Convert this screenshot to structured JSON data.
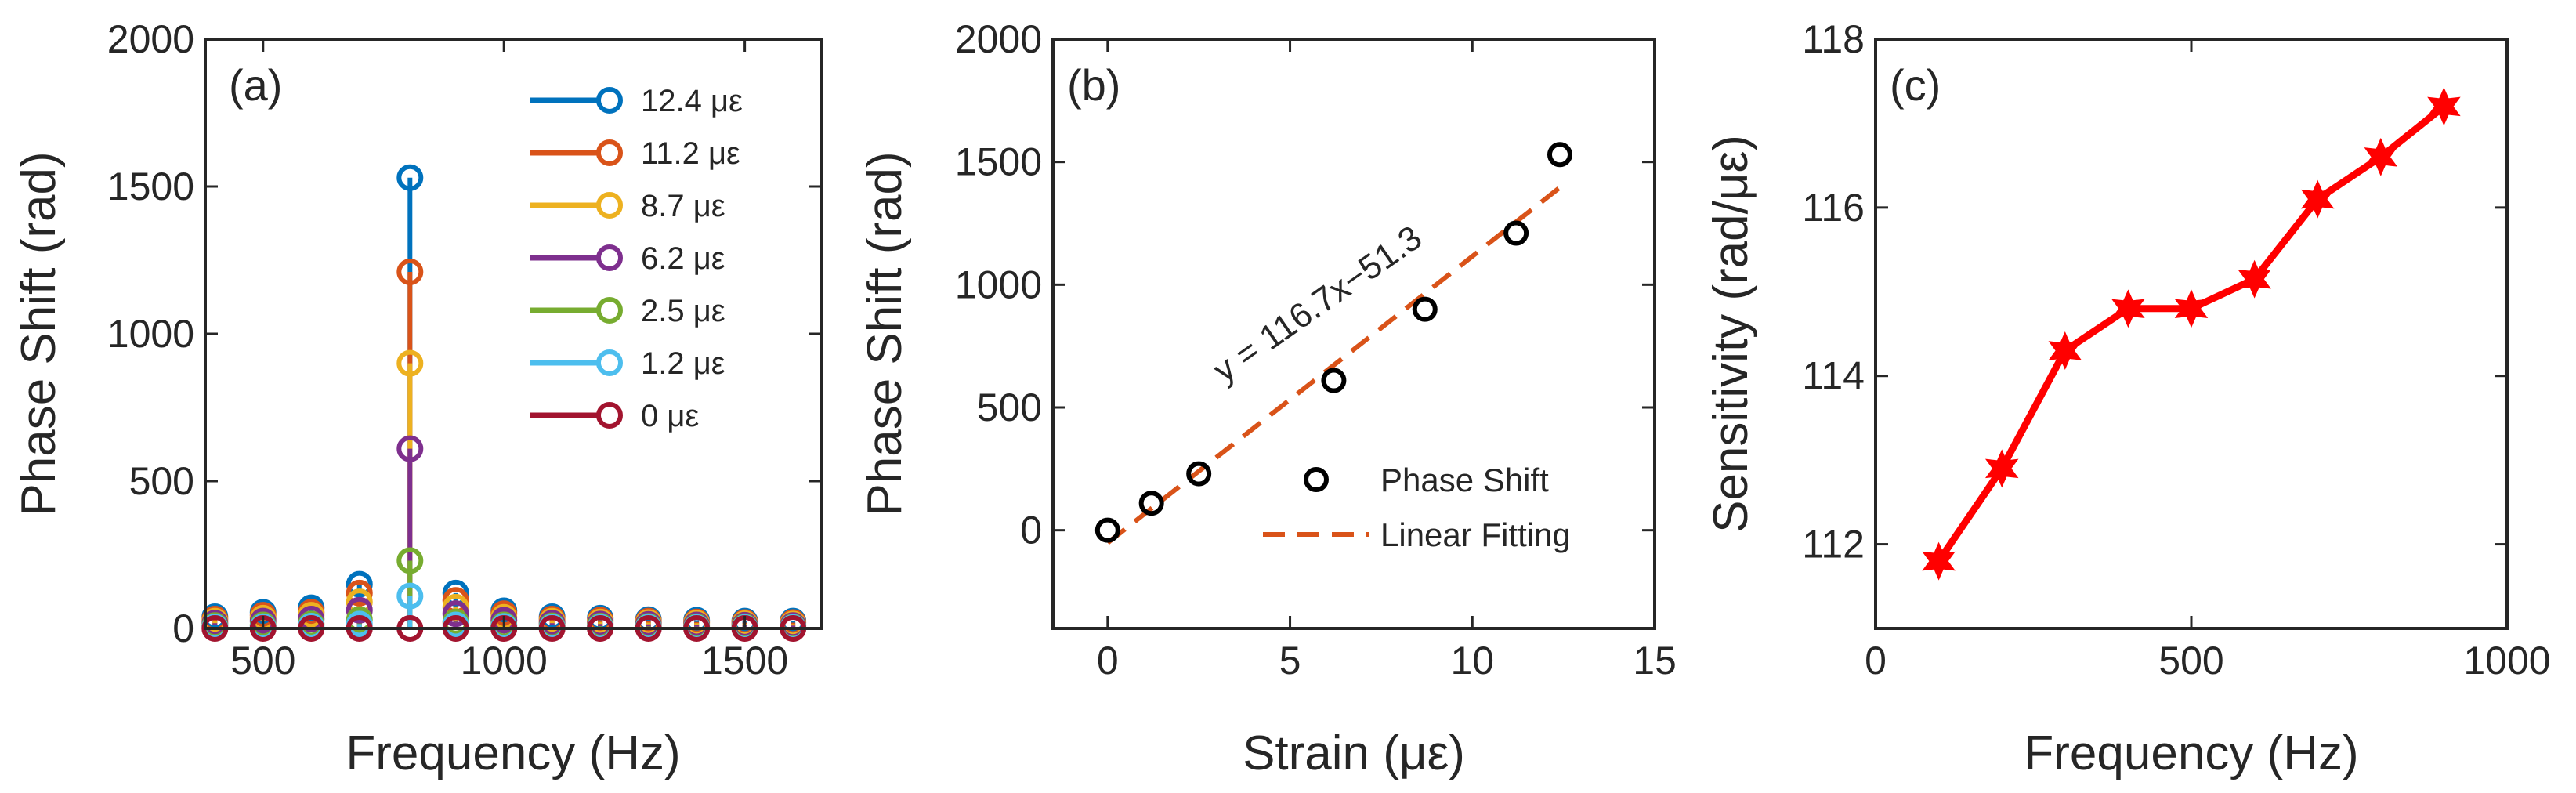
{
  "chart_data": [
    {
      "type": "line",
      "panel_label": "(a)",
      "xlabel": "Frequency (Hz)",
      "ylabel": "Phase Shift (rad)",
      "xlim": [
        380,
        1660
      ],
      "ylim": [
        0,
        2000
      ],
      "xticks": [
        500,
        1000,
        1500
      ],
      "yticks": [
        0,
        500,
        1000,
        1500,
        2000
      ],
      "legend_position": "top-right",
      "x": [
        400,
        500,
        600,
        700,
        805,
        900,
        1000,
        1100,
        1200,
        1300,
        1400,
        1500,
        1600
      ],
      "series": [
        {
          "name": "12.4 με",
          "color": "#0072BD",
          "values": [
            40,
            55,
            70,
            150,
            1530,
            120,
            60,
            40,
            35,
            30,
            28,
            25,
            25
          ]
        },
        {
          "name": "11.2 με",
          "color": "#D95319",
          "values": [
            32,
            45,
            55,
            120,
            1210,
            95,
            50,
            32,
            28,
            25,
            22,
            20,
            20
          ]
        },
        {
          "name": "8.7 με",
          "color": "#EDB120",
          "values": [
            25,
            35,
            45,
            90,
            900,
            72,
            38,
            25,
            22,
            20,
            18,
            16,
            15
          ]
        },
        {
          "name": "6.2 με",
          "color": "#7E2F8E",
          "values": [
            18,
            25,
            32,
            62,
            610,
            50,
            28,
            18,
            15,
            14,
            12,
            11,
            10
          ]
        },
        {
          "name": "2.5 με",
          "color": "#77AC30",
          "values": [
            10,
            12,
            15,
            30,
            230,
            22,
            12,
            9,
            8,
            7,
            6,
            6,
            5
          ]
        },
        {
          "name": "1.2 με",
          "color": "#4DBEEE",
          "values": [
            5,
            6,
            8,
            15,
            110,
            12,
            7,
            5,
            4,
            4,
            3,
            3,
            3
          ]
        },
        {
          "name": "0 με",
          "color": "#A2142F",
          "values": [
            0,
            0,
            0,
            0,
            0,
            0,
            0,
            0,
            0,
            0,
            0,
            0,
            0
          ]
        }
      ]
    },
    {
      "type": "scatter",
      "panel_label": "(b)",
      "xlabel": "Strain (με)",
      "ylabel": "Phase Shift (rad)",
      "xlim": [
        -1.5,
        15
      ],
      "ylim": [
        -400,
        2000
      ],
      "xticks": [
        0,
        5,
        10,
        15
      ],
      "yticks": [
        0,
        500,
        1000,
        1500,
        2000
      ],
      "legend_position": "bottom-right",
      "series": [
        {
          "name": "Phase Shift",
          "color": "#000000",
          "x": [
            0,
            1.2,
            2.5,
            6.2,
            8.7,
            11.2,
            12.4
          ],
          "y": [
            0,
            110,
            230,
            610,
            900,
            1210,
            1530
          ]
        }
      ],
      "fit": {
        "name": "Linear Fitting",
        "color": "#D95319",
        "slope": 116.7,
        "intercept": -51.3,
        "x_range": [
          0,
          12.4
        ],
        "equation": "y = 116.7x−51.3",
        "annotation_color": "#FF0000"
      }
    },
    {
      "type": "line",
      "panel_label": "(c)",
      "xlabel": "Frequency (Hz)",
      "ylabel": "Sensitivity (rad/με)",
      "xlim": [
        0,
        1000
      ],
      "ylim": [
        111,
        118
      ],
      "xticks": [
        0,
        500,
        1000
      ],
      "yticks": [
        112,
        114,
        116,
        118
      ],
      "series": [
        {
          "name": "Sensitivity",
          "color": "#FF0000",
          "x": [
            100,
            200,
            300,
            400,
            500,
            600,
            700,
            800,
            900
          ],
          "y": [
            111.8,
            112.9,
            114.3,
            114.8,
            114.8,
            115.15,
            116.1,
            116.6,
            117.2
          ]
        }
      ]
    }
  ]
}
